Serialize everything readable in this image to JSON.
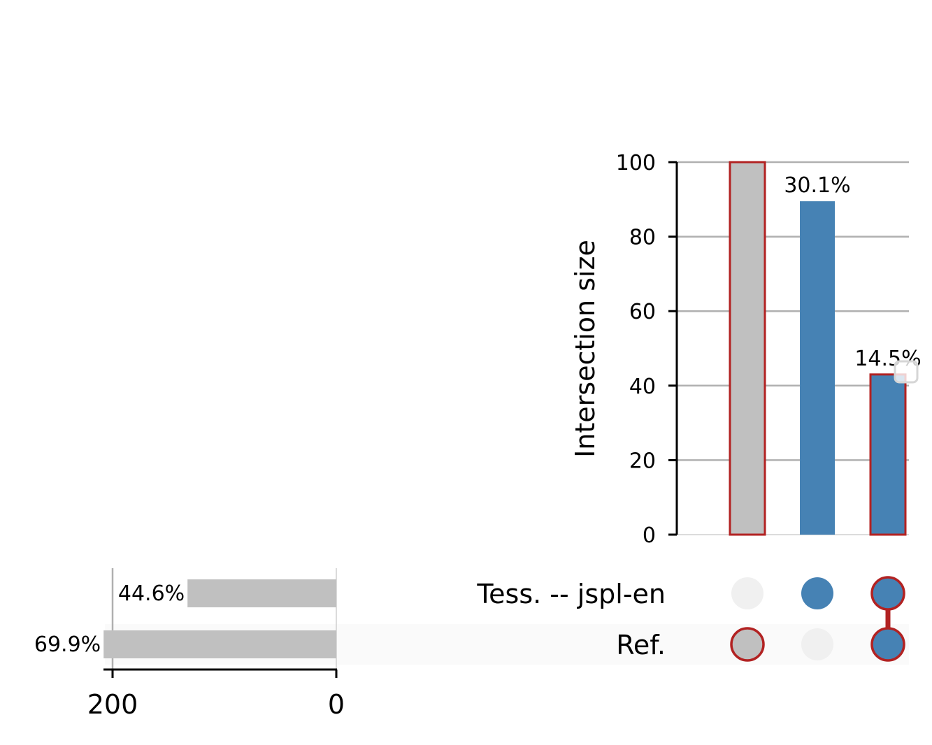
{
  "chart_data": {
    "type": "upset",
    "colors": {
      "highlight": "#4682b4",
      "base": "#c0c0c0",
      "outline": "#b22222",
      "grid": "#b0b0b0",
      "inactive_dot": "#f0f0f0"
    },
    "intersections": {
      "ylabel": "Intersection size",
      "ylim": [
        0,
        100
      ],
      "yticks": [
        0,
        20,
        40,
        60,
        80,
        100
      ],
      "bars": [
        {
          "value": 100,
          "label": "",
          "fill": "#c0c0c0",
          "outlined": true,
          "members": [
            false,
            true
          ]
        },
        {
          "value": 89.5,
          "label": "30.1%",
          "fill": "#4682b4",
          "outlined": false,
          "members": [
            true,
            false
          ]
        },
        {
          "value": 43,
          "label": "14.5%",
          "fill": "#4682b4",
          "outlined": true,
          "members": [
            true,
            true
          ]
        }
      ]
    },
    "sets": {
      "xlim": [
        0,
        200
      ],
      "xticks": [
        200,
        0
      ],
      "items": [
        {
          "name": "Tess. -- jspl-en",
          "value": 133,
          "label": "44.6%"
        },
        {
          "name": "Ref.",
          "value": 208,
          "label": "69.9%"
        }
      ]
    },
    "grid": true
  }
}
